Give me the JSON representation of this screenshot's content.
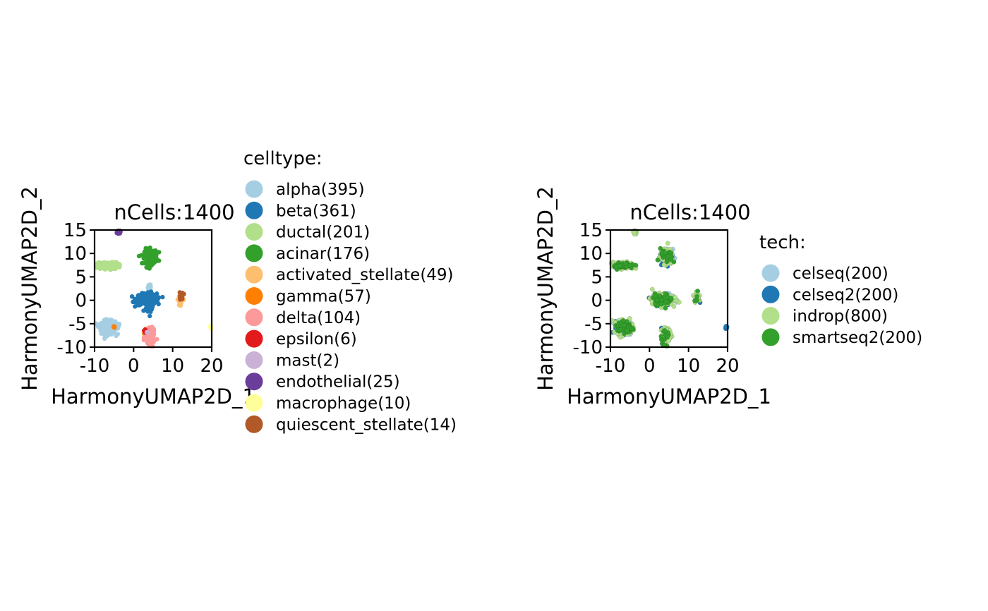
{
  "chart_data": [
    {
      "type": "scatter",
      "title": "nCells:1400",
      "xlabel": "HarmonyUMAP2D_1",
      "ylabel": "HarmonyUMAP2D_2",
      "xlim": [
        -10,
        20
      ],
      "ylim": [
        -10,
        15
      ],
      "xticks": [
        "-10",
        "0",
        "10",
        "20"
      ],
      "yticks": [
        "-10",
        "-5",
        "0",
        "5",
        "10",
        "15"
      ],
      "grid": false,
      "legend_title": "celltype:",
      "legend_placement": "right",
      "series": [
        {
          "name": "alpha(395)",
          "color": "#a6cee3",
          "clusters": [
            {
              "cx": -6.5,
              "cy": -5.8,
              "sx": 0.9,
              "sy": 0.7,
              "n": 330
            },
            {
              "cx": 4.1,
              "cy": 2.7,
              "sx": 0.2,
              "sy": 0.6,
              "n": 30
            },
            {
              "cx": -4.5,
              "cy": -5.5,
              "sx": 0.5,
              "sy": 0.3,
              "n": 35
            }
          ]
        },
        {
          "name": "beta(361)",
          "color": "#1f78b4",
          "clusters": [
            {
              "cx": 3.3,
              "cy": 0.2,
              "sx": 1.3,
              "sy": 0.6,
              "n": 250
            },
            {
              "cx": 4.2,
              "cy": -0.5,
              "sx": 0.4,
              "sy": 1.0,
              "n": 111
            }
          ]
        },
        {
          "name": "ductal(201)",
          "color": "#b2df8a",
          "clusters": [
            {
              "cx": -6.6,
              "cy": 7.4,
              "sx": 1.3,
              "sy": 0.35,
              "n": 201
            }
          ]
        },
        {
          "name": "acinar(176)",
          "color": "#33a02c",
          "clusters": [
            {
              "cx": 4.4,
              "cy": 9.3,
              "sx": 0.8,
              "sy": 0.8,
              "n": 176
            }
          ]
        },
        {
          "name": "activated_stellate(49)",
          "color": "#fdbf6f",
          "clusters": [
            {
              "cx": 12.0,
              "cy": 0.3,
              "sx": 0.3,
              "sy": 0.6,
              "n": 49
            }
          ]
        },
        {
          "name": "gamma(57)",
          "color": "#ff7f00",
          "clusters": [
            {
              "cx": 3.5,
              "cy": -6.8,
              "sx": 0.4,
              "sy": 0.3,
              "n": 50
            },
            {
              "cx": -5.0,
              "cy": -5.7,
              "sx": 0.1,
              "sy": 0.1,
              "n": 7
            }
          ]
        },
        {
          "name": "delta(104)",
          "color": "#fb9a99",
          "clusters": [
            {
              "cx": 4.2,
              "cy": -8.0,
              "sx": 0.6,
              "sy": 0.8,
              "n": 104
            }
          ]
        },
        {
          "name": "epsilon(6)",
          "color": "#e31a1c",
          "clusters": [
            {
              "cx": 3.0,
              "cy": -6.6,
              "sx": 0.3,
              "sy": 0.3,
              "n": 6
            }
          ]
        },
        {
          "name": "mast(2)",
          "color": "#cab2d6",
          "clusters": [
            {
              "cx": 3.4,
              "cy": -6.9,
              "sx": 0.1,
              "sy": 0.1,
              "n": 2
            }
          ]
        },
        {
          "name": "endothelial(25)",
          "color": "#6a3d9a",
          "clusters": [
            {
              "cx": -3.8,
              "cy": 14.6,
              "sx": 0.2,
              "sy": 0.25,
              "n": 25
            }
          ]
        },
        {
          "name": "macrophage(10)",
          "color": "#ffff99",
          "clusters": [
            {
              "cx": 19.8,
              "cy": -5.8,
              "sx": 0.15,
              "sy": 0.15,
              "n": 10
            }
          ]
        },
        {
          "name": "quiescent_stellate(14)",
          "color": "#b15928",
          "clusters": [
            {
              "cx": 12.2,
              "cy": 1.0,
              "sx": 0.3,
              "sy": 0.4,
              "n": 14
            }
          ]
        }
      ]
    },
    {
      "type": "scatter",
      "title": "nCells:1400",
      "xlabel": "HarmonyUMAP2D_1",
      "ylabel": "HarmonyUMAP2D_2",
      "xlim": [
        -10,
        20
      ],
      "ylim": [
        -10,
        15
      ],
      "xticks": [
        "-10",
        "0",
        "10",
        "20"
      ],
      "yticks": [
        "-10",
        "-5",
        "0",
        "5",
        "10",
        "15"
      ],
      "grid": false,
      "legend_title": "tech:",
      "legend_placement": "right",
      "series": [
        {
          "name": "celseq(200)",
          "color": "#a6cee3",
          "clusters": [
            {
              "cx": -6.5,
              "cy": -5.8,
              "sx": 0.9,
              "sy": 0.7,
              "n": 90
            },
            {
              "cx": 3.3,
              "cy": 0.2,
              "sx": 1.3,
              "sy": 0.6,
              "n": 50
            },
            {
              "cx": 4.4,
              "cy": 9.3,
              "sx": 0.8,
              "sy": 0.8,
              "n": 30
            },
            {
              "cx": -6.6,
              "cy": 7.4,
              "sx": 1.3,
              "sy": 0.35,
              "n": 30
            }
          ]
        },
        {
          "name": "celseq2(200)",
          "color": "#1f78b4",
          "clusters": [
            {
              "cx": -6.5,
              "cy": -5.8,
              "sx": 0.9,
              "sy": 0.7,
              "n": 70
            },
            {
              "cx": 3.3,
              "cy": 0.2,
              "sx": 1.3,
              "sy": 0.6,
              "n": 50
            },
            {
              "cx": 4.4,
              "cy": 9.3,
              "sx": 0.8,
              "sy": 0.8,
              "n": 40
            },
            {
              "cx": 4.2,
              "cy": -7.5,
              "sx": 0.6,
              "sy": 0.8,
              "n": 20
            },
            {
              "cx": 12.1,
              "cy": 0.6,
              "sx": 0.3,
              "sy": 0.5,
              "n": 10
            },
            {
              "cx": 19.8,
              "cy": -5.8,
              "sx": 0.15,
              "sy": 0.15,
              "n": 10
            }
          ]
        },
        {
          "name": "indrop(800)",
          "color": "#b2df8a",
          "clusters": [
            {
              "cx": -6.5,
              "cy": -5.8,
              "sx": 0.9,
              "sy": 0.7,
              "n": 220
            },
            {
              "cx": 3.3,
              "cy": 0.2,
              "sx": 1.3,
              "sy": 0.6,
              "n": 200
            },
            {
              "cx": 4.4,
              "cy": 9.3,
              "sx": 0.8,
              "sy": 0.8,
              "n": 90
            },
            {
              "cx": -6.6,
              "cy": 7.4,
              "sx": 1.3,
              "sy": 0.35,
              "n": 130
            },
            {
              "cx": 4.2,
              "cy": -7.5,
              "sx": 0.6,
              "sy": 0.8,
              "n": 110
            },
            {
              "cx": 12.1,
              "cy": 0.6,
              "sx": 0.3,
              "sy": 0.5,
              "n": 30
            },
            {
              "cx": -3.8,
              "cy": 14.6,
              "sx": 0.2,
              "sy": 0.25,
              "n": 20
            }
          ]
        },
        {
          "name": "smartseq2(200)",
          "color": "#33a02c",
          "clusters": [
            {
              "cx": -6.5,
              "cy": -5.8,
              "sx": 0.9,
              "sy": 0.7,
              "n": 60
            },
            {
              "cx": 3.3,
              "cy": 0.2,
              "sx": 1.3,
              "sy": 0.6,
              "n": 50
            },
            {
              "cx": 4.4,
              "cy": 9.3,
              "sx": 0.8,
              "sy": 0.8,
              "n": 30
            },
            {
              "cx": -6.6,
              "cy": 7.4,
              "sx": 1.3,
              "sy": 0.35,
              "n": 40
            },
            {
              "cx": 4.2,
              "cy": -7.5,
              "sx": 0.6,
              "sy": 0.8,
              "n": 15
            },
            {
              "cx": 12.1,
              "cy": 0.6,
              "sx": 0.3,
              "sy": 0.5,
              "n": 5
            }
          ]
        }
      ]
    }
  ]
}
